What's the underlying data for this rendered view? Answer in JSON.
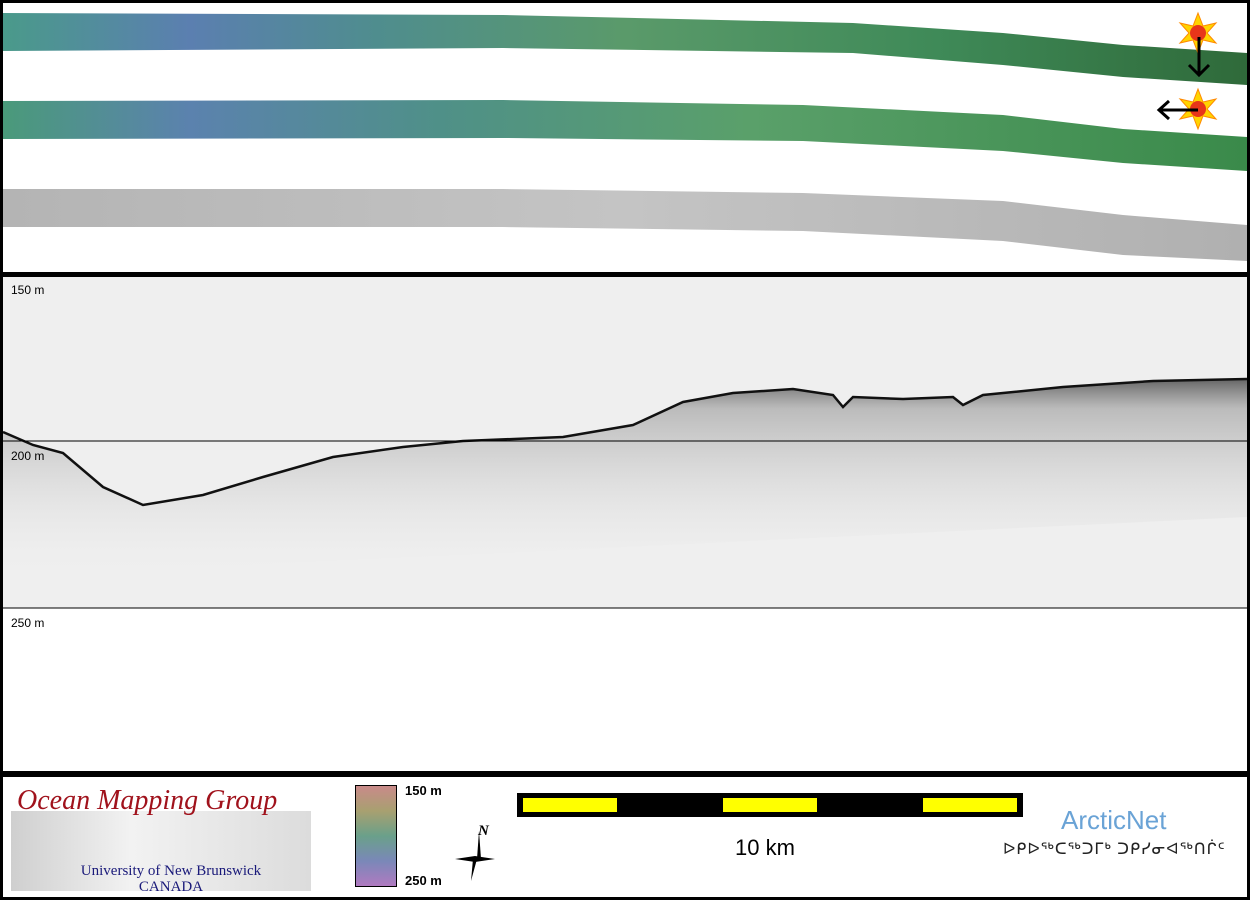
{
  "profile": {
    "depth_labels": [
      "150 m",
      "200 m",
      "250 m"
    ]
  },
  "legend": {
    "org_name": "Ocean Mapping Group",
    "org_university": "University of New Brunswick",
    "org_country": "CANADA",
    "colorbar_top": "150 m",
    "colorbar_bottom": "250 m",
    "north_label": "N",
    "scale_label": "10 km",
    "partner_name": "ArcticNet",
    "partner_syllabics": "ᐅᑭᐅᖅᑕᖅᑐᒥᒃ ᑐᑭᓯᓂᐊᖅᑎᒌᑦ"
  },
  "colors": {
    "track_green": "#4e9a6a",
    "track_blue": "#5a7fa8",
    "backscatter_gray": "#bdbdbd",
    "scale_yellow": "#ffff00",
    "scale_black": "#000000",
    "org_red": "#a0121c",
    "partner_blue": "#6aa3d6"
  },
  "icons": [
    "sun-marker-icon",
    "arrow-down-icon",
    "arrow-left-icon",
    "north-arrow-icon",
    "colorbar"
  ]
}
